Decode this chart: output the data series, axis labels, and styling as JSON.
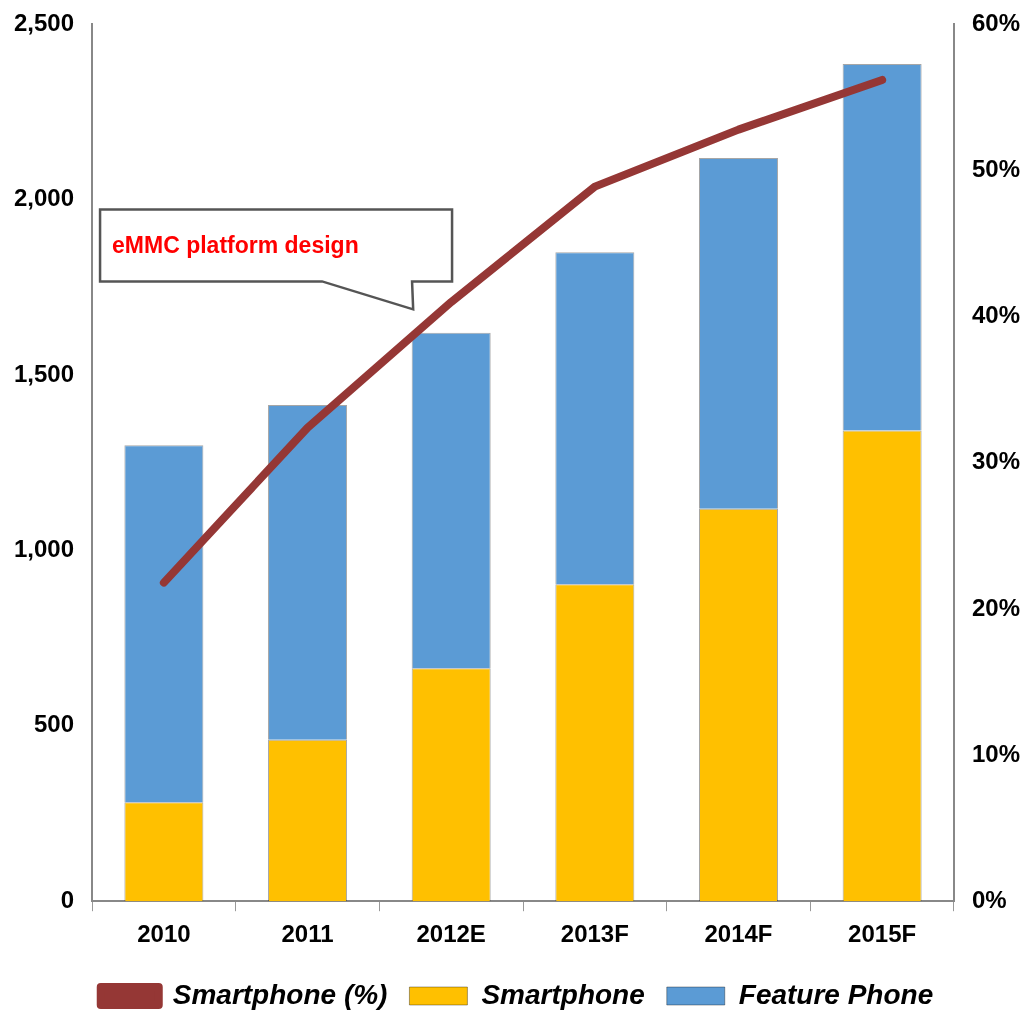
{
  "chart_data": {
    "type": "bar",
    "stacked": true,
    "categories": [
      "2010",
      "2011",
      "2012E",
      "2013F",
      "2014F",
      "2015F"
    ],
    "series": [
      {
        "name": "Smartphone",
        "color": "#ffc000",
        "values": [
          282,
          460,
          664,
          904,
          1119,
          1342
        ]
      },
      {
        "name": "Feature Phone",
        "color": "#5b9bd5",
        "values": [
          1018,
          955,
          957,
          946,
          1000,
          1045
        ]
      },
      {
        "name": "Smartphone (%)",
        "type": "line",
        "axis": "y2",
        "color": "#953735",
        "values": [
          21.8,
          32.4,
          41.0,
          48.9,
          52.8,
          56.2
        ]
      }
    ],
    "ylim": [
      0,
      2500
    ],
    "yticks": [
      0,
      500,
      {
        "value": 1000,
        "label": "1,000"
      },
      {
        "value": 1500,
        "label": "1,500"
      },
      {
        "value": 2000,
        "label": "2,000"
      },
      {
        "value": 2500,
        "label": "2,500"
      }
    ],
    "y2lim": [
      0,
      60
    ],
    "y2ticks": [
      {
        "value": 0,
        "label": "0%"
      },
      {
        "value": 10,
        "label": "10%"
      },
      {
        "value": 20,
        "label": "20%"
      },
      {
        "value": 30,
        "label": "30%"
      },
      {
        "value": 40,
        "label": "40%"
      },
      {
        "value": 50,
        "label": "50%"
      },
      {
        "value": 60,
        "label": "60%"
      }
    ],
    "annotations": [
      "eMMC platform design"
    ],
    "grid": false,
    "legend": "bottom",
    "marker": "none"
  }
}
